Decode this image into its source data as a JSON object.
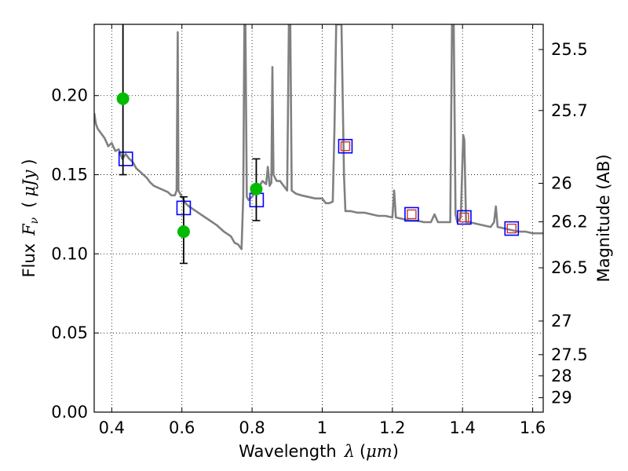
{
  "chart_data": {
    "type": "line",
    "xlabel": {
      "prefix": "Wavelength",
      "symbol": "λ",
      "unit_open": "(",
      "unit": "μm",
      "unit_close": ")"
    },
    "ylabel": {
      "prefix": "Flux",
      "symbol": "F",
      "subscript": "ν",
      "unit_open": "(",
      "unit": "μJy",
      "unit_close": ")"
    },
    "y2label": "Magnitude (AB)",
    "xlim": [
      0.35,
      1.63
    ],
    "ylim": [
      0.0,
      0.245
    ],
    "grid": true,
    "x_ticks": [
      "0.4",
      "0.6",
      "0.8",
      "1",
      "1.2",
      "1.4",
      "1.6"
    ],
    "x_tick_values": [
      0.4,
      0.6,
      0.8,
      1.0,
      1.2,
      1.4,
      1.6
    ],
    "y_ticks": [
      "0.00",
      "0.05",
      "0.10",
      "0.15",
      "0.20"
    ],
    "y_tick_values": [
      0.0,
      0.05,
      0.1,
      0.15,
      0.2
    ],
    "y2_ticks": [
      {
        "label": "25.5",
        "mag": 25.5
      },
      {
        "label": "25.7",
        "mag": 25.7
      },
      {
        "label": "26",
        "mag": 26.0
      },
      {
        "label": "26.2",
        "mag": 26.2
      },
      {
        "label": "26.5",
        "mag": 26.5
      },
      {
        "label": "27",
        "mag": 27.0
      },
      {
        "label": "27.5",
        "mag": 27.5
      },
      {
        "label": "28",
        "mag": 28.0
      },
      {
        "label": "29",
        "mag": 29.0
      }
    ],
    "series": [
      {
        "kind": "spectrum",
        "color": "#808080",
        "points": [
          [
            0.35,
            0.189
          ],
          [
            0.355,
            0.182
          ],
          [
            0.36,
            0.179
          ],
          [
            0.37,
            0.176
          ],
          [
            0.38,
            0.173
          ],
          [
            0.39,
            0.168
          ],
          [
            0.4,
            0.17
          ],
          [
            0.41,
            0.165
          ],
          [
            0.42,
            0.166
          ],
          [
            0.43,
            0.16
          ],
          [
            0.44,
            0.163
          ],
          [
            0.45,
            0.16
          ],
          [
            0.46,
            0.158
          ],
          [
            0.47,
            0.154
          ],
          [
            0.48,
            0.152
          ],
          [
            0.49,
            0.15
          ],
          [
            0.5,
            0.148
          ],
          [
            0.51,
            0.145
          ],
          [
            0.52,
            0.143
          ],
          [
            0.53,
            0.142
          ],
          [
            0.54,
            0.141
          ],
          [
            0.55,
            0.14
          ],
          [
            0.56,
            0.139
          ],
          [
            0.57,
            0.137
          ],
          [
            0.58,
            0.137
          ],
          [
            0.585,
            0.14
          ],
          [
            0.588,
            0.24
          ],
          [
            0.59,
            0.14
          ],
          [
            0.6,
            0.136
          ],
          [
            0.61,
            0.132
          ],
          [
            0.62,
            0.13
          ],
          [
            0.64,
            0.127
          ],
          [
            0.66,
            0.124
          ],
          [
            0.68,
            0.121
          ],
          [
            0.7,
            0.118
          ],
          [
            0.72,
            0.114
          ],
          [
            0.74,
            0.111
          ],
          [
            0.75,
            0.107
          ],
          [
            0.76,
            0.106
          ],
          [
            0.77,
            0.103
          ],
          [
            0.775,
            0.137
          ],
          [
            0.778,
            0.245
          ],
          [
            0.781,
            0.245
          ],
          [
            0.785,
            0.136
          ],
          [
            0.79,
            0.134
          ],
          [
            0.8,
            0.136
          ],
          [
            0.815,
            0.141
          ],
          [
            0.83,
            0.146
          ],
          [
            0.84,
            0.144
          ],
          [
            0.845,
            0.155
          ],
          [
            0.85,
            0.143
          ],
          [
            0.855,
            0.145
          ],
          [
            0.858,
            0.218
          ],
          [
            0.861,
            0.15
          ],
          [
            0.87,
            0.146
          ],
          [
            0.88,
            0.146
          ],
          [
            0.89,
            0.143
          ],
          [
            0.9,
            0.14
          ],
          [
            0.905,
            0.245
          ],
          [
            0.909,
            0.245
          ],
          [
            0.913,
            0.14
          ],
          [
            0.925,
            0.138
          ],
          [
            0.94,
            0.137
          ],
          [
            0.96,
            0.136
          ],
          [
            0.98,
            0.135
          ],
          [
            1.0,
            0.135
          ],
          [
            1.01,
            0.132
          ],
          [
            1.02,
            0.132
          ],
          [
            1.03,
            0.133
          ],
          [
            1.035,
            0.18
          ],
          [
            1.04,
            0.245
          ],
          [
            1.055,
            0.245
          ],
          [
            1.062,
            0.15
          ],
          [
            1.066,
            0.127
          ],
          [
            1.08,
            0.127
          ],
          [
            1.1,
            0.126
          ],
          [
            1.12,
            0.126
          ],
          [
            1.14,
            0.125
          ],
          [
            1.16,
            0.124
          ],
          [
            1.18,
            0.124
          ],
          [
            1.2,
            0.123
          ],
          [
            1.205,
            0.14
          ],
          [
            1.21,
            0.123
          ],
          [
            1.23,
            0.122
          ],
          [
            1.25,
            0.121
          ],
          [
            1.27,
            0.121
          ],
          [
            1.29,
            0.12
          ],
          [
            1.31,
            0.12
          ],
          [
            1.32,
            0.125
          ],
          [
            1.33,
            0.12
          ],
          [
            1.35,
            0.12
          ],
          [
            1.365,
            0.12
          ],
          [
            1.37,
            0.245
          ],
          [
            1.375,
            0.245
          ],
          [
            1.38,
            0.125
          ],
          [
            1.385,
            0.12
          ],
          [
            1.395,
            0.123
          ],
          [
            1.402,
            0.175
          ],
          [
            1.405,
            0.172
          ],
          [
            1.41,
            0.12
          ],
          [
            1.42,
            0.12
          ],
          [
            1.44,
            0.119
          ],
          [
            1.46,
            0.118
          ],
          [
            1.48,
            0.117
          ],
          [
            1.49,
            0.12
          ],
          [
            1.495,
            0.13
          ],
          [
            1.5,
            0.117
          ],
          [
            1.52,
            0.116
          ],
          [
            1.54,
            0.115
          ],
          [
            1.56,
            0.114
          ],
          [
            1.58,
            0.114
          ],
          [
            1.6,
            0.113
          ],
          [
            1.62,
            0.113
          ],
          [
            1.63,
            0.113
          ]
        ]
      },
      {
        "kind": "model_points",
        "color": "#0000ff",
        "points": [
          [
            0.44,
            0.16
          ],
          [
            0.605,
            0.129
          ],
          [
            0.813,
            0.134
          ],
          [
            1.066,
            0.168
          ],
          [
            1.255,
            0.125
          ],
          [
            1.405,
            0.123
          ],
          [
            1.54,
            0.116
          ]
        ]
      },
      {
        "kind": "model_points_inner",
        "color": "#cc3333",
        "points": [
          [
            1.066,
            0.168
          ],
          [
            1.255,
            0.125
          ],
          [
            1.405,
            0.123
          ],
          [
            1.54,
            0.116
          ]
        ]
      },
      {
        "kind": "observed",
        "color": "#00bb00",
        "points": [
          {
            "x": 0.432,
            "y": 0.198,
            "ylo": 0.15,
            "yhi": 0.245
          },
          {
            "x": 0.605,
            "y": 0.114,
            "ylo": 0.094,
            "yhi": 0.136
          },
          {
            "x": 0.812,
            "y": 0.141,
            "ylo": 0.121,
            "yhi": 0.16
          }
        ]
      }
    ]
  }
}
